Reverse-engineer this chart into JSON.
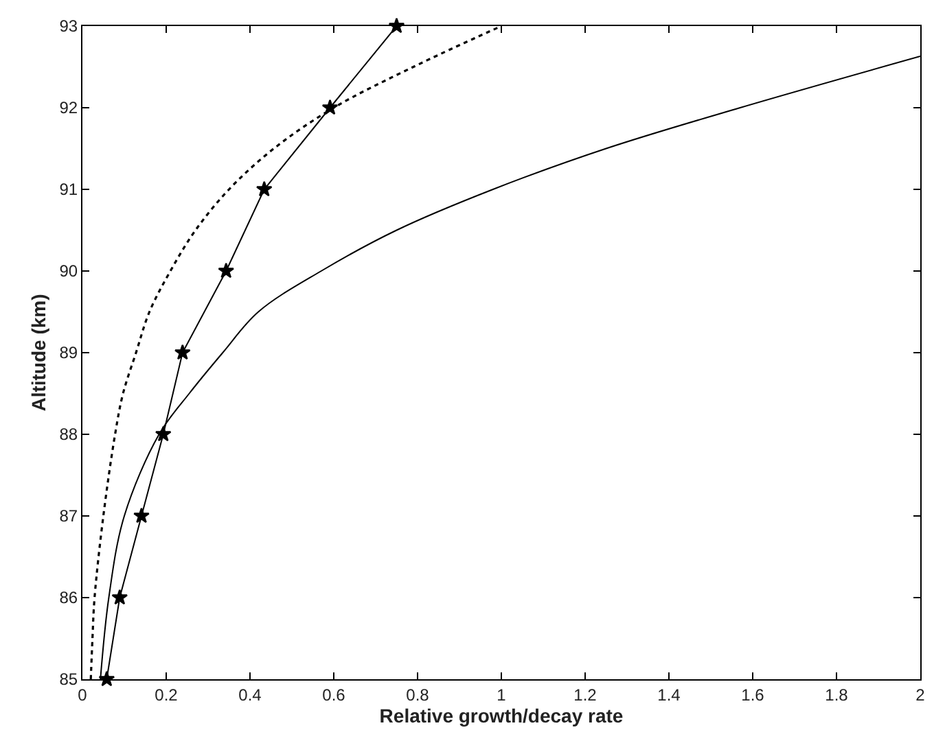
{
  "chart_data": {
    "type": "line",
    "xlabel": "Relative growth/decay rate",
    "ylabel": "Altitude (km)",
    "xlim": [
      0,
      2
    ],
    "ylim": [
      85,
      93
    ],
    "xticks": [
      0,
      0.2,
      0.4,
      0.6,
      0.8,
      {
        "value": 1,
        "label": "1"
      },
      1.2,
      1.4,
      1.6,
      1.8,
      {
        "value": 2,
        "label": "2"
      }
    ],
    "yticks": [
      85,
      86,
      87,
      88,
      89,
      90,
      91,
      92,
      93
    ],
    "series": [
      {
        "color": "#000000",
        "marker": "star",
        "line_style": "solid",
        "x": [
          0.058,
          0.089,
          0.141,
          0.193,
          0.239,
          0.343,
          0.434,
          0.591,
          0.75
        ],
        "values": [
          85,
          86,
          87,
          88,
          89,
          90,
          91,
          92,
          93
        ]
      },
      {
        "color": "#000000",
        "marker": "none",
        "line_style": "dotted",
        "x": [
          0.02,
          0.024,
          0.029,
          0.05,
          0.078,
          0.097,
          0.128,
          0.16,
          0.21,
          0.27,
          0.35,
          0.457,
          0.6,
          0.79,
          1.0
        ],
        "values": [
          85,
          85.5,
          86,
          87,
          88,
          88.5,
          89,
          89.5,
          90,
          90.5,
          91,
          91.5,
          92,
          92.5,
          93
        ]
      },
      {
        "color": "#000000",
        "marker": "none",
        "line_style": "solid",
        "x": [
          0.043,
          0.063,
          0.1,
          0.183,
          0.255,
          0.335,
          0.42,
          0.57,
          0.75,
          0.98,
          1.25,
          1.57,
          2.0
        ],
        "values": [
          85,
          86,
          87,
          88,
          88.5,
          89,
          89.5,
          90,
          90.5,
          91,
          91.5,
          92,
          92.63
        ]
      }
    ]
  }
}
